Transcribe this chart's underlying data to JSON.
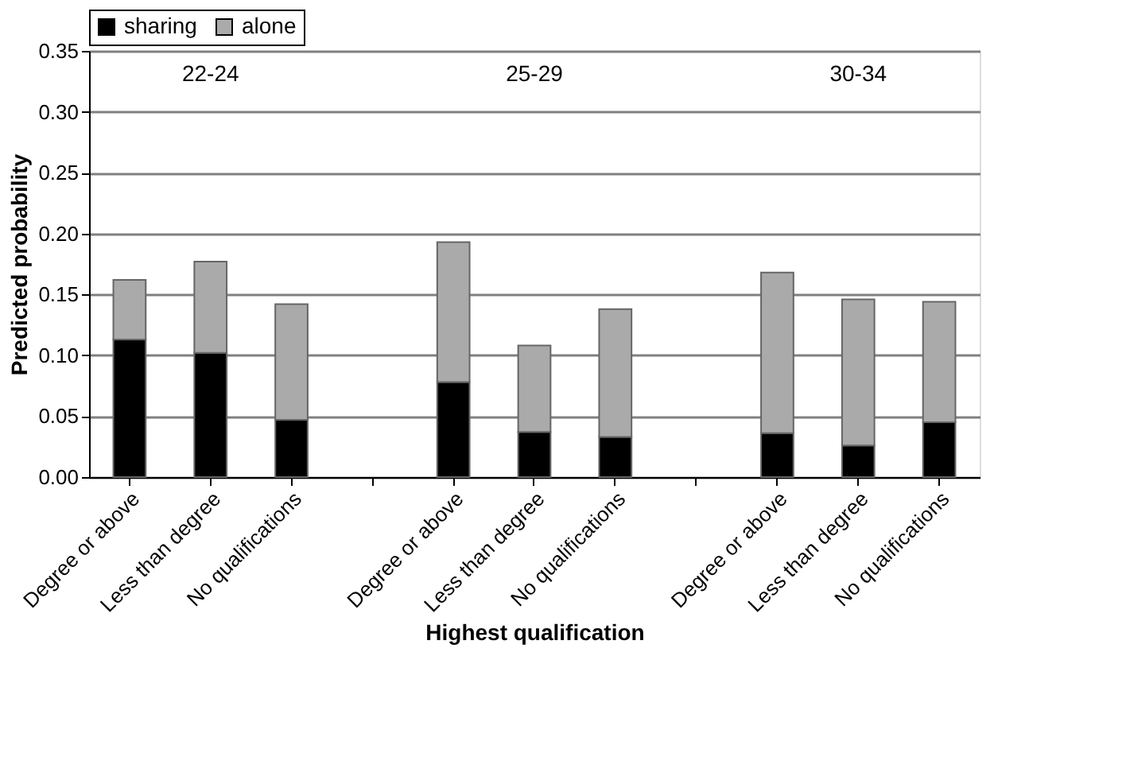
{
  "chart_data": {
    "type": "bar",
    "stacked": true,
    "categories": [
      "Degree or above",
      "Less than degree",
      "No qualifications",
      null,
      "Degree or above",
      "Less than degree",
      "No qualifications",
      null,
      "Degree or above",
      "Less than degree",
      "No qualifications"
    ],
    "series": [
      {
        "name": "sharing",
        "color": "#000000",
        "values": [
          0.113,
          0.102,
          0.047,
          null,
          0.078,
          0.037,
          0.033,
          null,
          0.036,
          0.026,
          0.045
        ]
      },
      {
        "name": "alone",
        "color": "#aaaaaa",
        "values": [
          0.049,
          0.075,
          0.095,
          null,
          0.115,
          0.071,
          0.105,
          null,
          0.132,
          0.12,
          0.099
        ]
      }
    ],
    "xlabel": "Highest qualification",
    "ylabel": "Predicted probability",
    "ylim": [
      0,
      0.35
    ],
    "yticks": [
      {
        "value": 0,
        "label": "0.00"
      },
      {
        "value": 0.05,
        "label": "0.05"
      },
      {
        "value": 0.1,
        "label": "0.10"
      },
      {
        "value": 0.15,
        "label": "0.15"
      },
      {
        "value": 0.2,
        "label": "0.20"
      },
      {
        "value": 0.25,
        "label": "0.25"
      },
      {
        "value": 0.3,
        "label": "0.30"
      },
      {
        "value": 0.35,
        "label": "0.35"
      }
    ],
    "annotations": [
      "22-24",
      "25-29",
      "30-34"
    ],
    "grid": "y",
    "legend": "top"
  }
}
